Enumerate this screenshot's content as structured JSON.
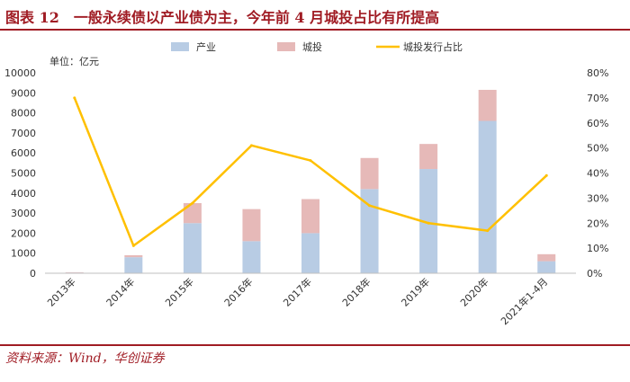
{
  "header": {
    "title": "图表 12　一般永续债以产业债为主，今年前 4 月城投占比有所提高"
  },
  "footer": {
    "source": "资料来源：Wind，华创证券"
  },
  "chart_data": {
    "type": "bar",
    "title": "",
    "unit_label": "单位：亿元",
    "categories": [
      "2013年",
      "2014年",
      "2015年",
      "2016年",
      "2017年",
      "2018年",
      "2019年",
      "2020年",
      "2021年1-4月"
    ],
    "series": [
      {
        "name": "产业",
        "type": "bar",
        "stack": "total",
        "axis": "left",
        "color": "#b8cce4",
        "values": [
          30,
          800,
          2500,
          1600,
          2000,
          4200,
          5200,
          7600,
          600
        ]
      },
      {
        "name": "城投",
        "type": "bar",
        "stack": "total",
        "axis": "left",
        "color": "#e6b9b8",
        "values": [
          20,
          100,
          1000,
          1600,
          1700,
          1550,
          1250,
          1550,
          350
        ]
      },
      {
        "name": "城投发行占比",
        "type": "line",
        "axis": "right",
        "color": "#ffc000",
        "values": [
          0.7,
          0.11,
          0.28,
          0.51,
          0.45,
          0.27,
          0.2,
          0.17,
          0.39
        ]
      }
    ],
    "y_left": {
      "min": 0,
      "max": 10000,
      "step": 1000
    },
    "y_right": {
      "min": 0,
      "max": 0.8,
      "step": 0.1,
      "format": "percent"
    },
    "legend": {
      "position": "top"
    },
    "grid": false
  }
}
